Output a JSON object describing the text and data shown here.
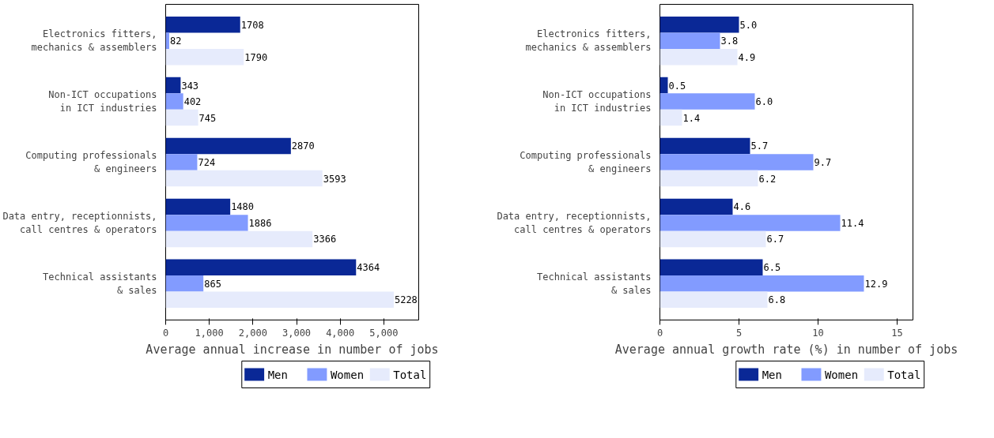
{
  "chart_data": [
    {
      "type": "bar",
      "orientation": "horizontal",
      "xlabel": "Average annual increase in number of jobs",
      "categories": [
        "Electronics fitters,\nmechanics & assemblers",
        "Non-ICT occupations\nin ICT industries",
        "Computing professionals\n& engineers",
        "Data entry, receptionnists,\ncall centres & operators",
        "Technical assistants\n& sales"
      ],
      "series": [
        {
          "name": "Men",
          "color": "#0a2896",
          "values": [
            1708,
            343,
            2870,
            1480,
            4364
          ]
        },
        {
          "name": "Women",
          "color": "#829bff",
          "values": [
            82,
            402,
            724,
            1886,
            865
          ]
        },
        {
          "name": "Total",
          "color": "#e6ebfc",
          "values": [
            1790,
            745,
            3593,
            3366,
            5228
          ]
        }
      ],
      "xlim": [
        0,
        5800
      ],
      "xticks": [
        0,
        {
          "value": 1000,
          "label": "1,000"
        },
        {
          "value": 2000,
          "label": "2,000"
        },
        {
          "value": 3000,
          "label": "3,000"
        },
        {
          "value": 4000,
          "label": "4,000"
        },
        {
          "value": 5000,
          "label": "5,000"
        }
      ],
      "data_labels": true,
      "grid": false,
      "legend": "bottom"
    },
    {
      "type": "bar",
      "orientation": "horizontal",
      "xlabel": "Average annual growth rate (%) in number of jobs",
      "categories": [
        "Electronics fitters,\nmechanics & assemblers",
        "Non-ICT occupations\nin ICT industries",
        "Computing professionals\n& engineers",
        "Data entry, receptionnists,\ncall centres & operators",
        "Technical assistants\n& sales"
      ],
      "series": [
        {
          "name": "Men",
          "color": "#0a2896",
          "values": [
            5.0,
            0.5,
            5.7,
            4.6,
            6.5
          ],
          "value_labels": [
            "5.0",
            "0.5",
            "5.7",
            "4.6",
            "6.5"
          ]
        },
        {
          "name": "Women",
          "color": "#829bff",
          "values": [
            3.8,
            6.0,
            9.7,
            11.4,
            12.9
          ],
          "value_labels": [
            "3.8",
            "6.0",
            "9.7",
            "11.4",
            "12.9"
          ]
        },
        {
          "name": "Total",
          "color": "#e6ebfc",
          "values": [
            4.9,
            1.4,
            6.2,
            6.7,
            6.8
          ],
          "value_labels": [
            "4.9",
            "1.4",
            "6.2",
            "6.7",
            "6.8"
          ]
        }
      ],
      "xlim": [
        0,
        16
      ],
      "xticks": [
        0,
        5,
        10,
        15
      ],
      "grid": false,
      "legend": "bottom"
    }
  ]
}
